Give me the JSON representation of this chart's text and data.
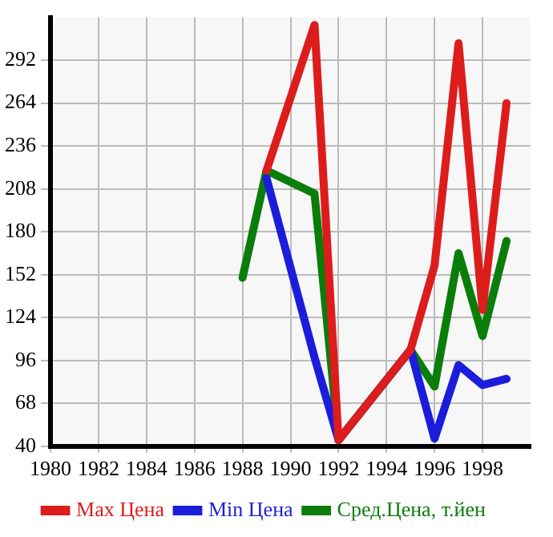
{
  "chart_data": {
    "type": "line",
    "xlim": [
      1980,
      2000
    ],
    "xticks": [
      1980,
      1982,
      1984,
      1986,
      1988,
      1990,
      1992,
      1994,
      1996,
      1998
    ],
    "ylim": [
      40,
      320
    ],
    "yticks": [
      40,
      68,
      96,
      124,
      152,
      180,
      208,
      236,
      264,
      292
    ],
    "grid": true,
    "legend": "bottom",
    "marker": "none",
    "line_style": "solid",
    "series": [
      {
        "name": "Max Цена",
        "color": "#dd1c1c",
        "x": [
          1989,
          1991,
          1992,
          1995,
          1996,
          1997,
          1998,
          1999
        ],
        "values": [
          220,
          315,
          44,
          103,
          158,
          303,
          129,
          264
        ]
      },
      {
        "name": "Min Цена",
        "color": "#1c1cdd",
        "x": [
          1989,
          1991,
          1992,
          1995,
          1996,
          1997,
          1998,
          1999
        ],
        "values": [
          215,
          98,
          44,
          103,
          45,
          93,
          80,
          84
        ]
      },
      {
        "name": "Сред.Цена, т.йен",
        "color": "#0a7d0a",
        "x": [
          1988,
          1989,
          1991,
          1992,
          1995,
          1996,
          1997,
          1998,
          1999
        ],
        "values": [
          150,
          220,
          205,
          44,
          103,
          79,
          166,
          112,
          174
        ]
      }
    ]
  }
}
